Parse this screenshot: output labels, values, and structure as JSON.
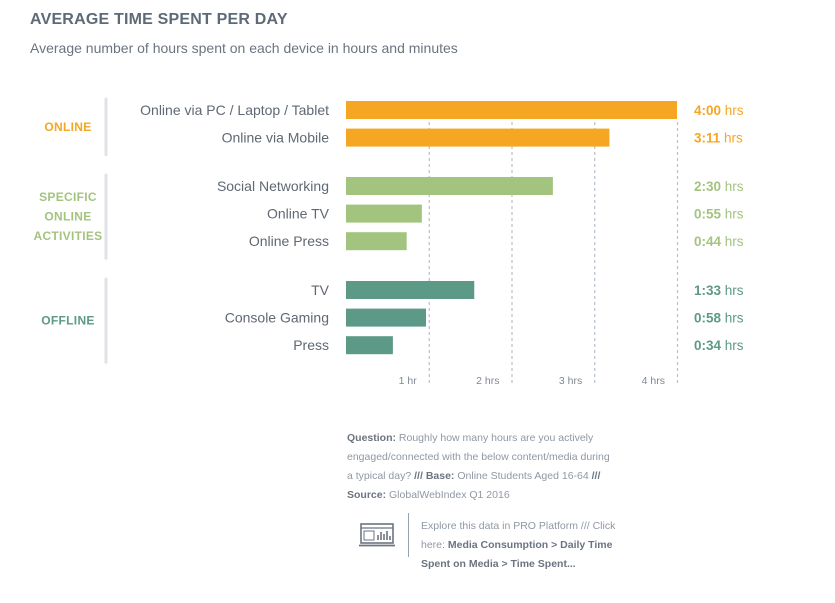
{
  "header": {
    "title": "AVERAGE TIME SPENT PER DAY",
    "subtitle": "Average number of hours spent on each device in hours and minutes"
  },
  "colors": {
    "online": "#f5a623",
    "specific": "#a3c47f",
    "offline": "#5c9a87",
    "bracket": "#dfe3e7",
    "grid": "#b9c0c8",
    "tick": "#7f8893",
    "label": "#5f6873"
  },
  "chart_data": {
    "type": "bar",
    "orientation": "horizontal",
    "title": "AVERAGE TIME SPENT PER DAY",
    "subtitle": "Average number of hours spent on each device in hours and minutes",
    "xlabel": "",
    "ylabel": "",
    "xlim": [
      0,
      4
    ],
    "x_ticks": [
      "1 hr",
      "2 hrs",
      "3 hrs",
      "4 hrs"
    ],
    "groups": [
      {
        "name": "ONLINE",
        "name_lines": [
          "ONLINE"
        ],
        "color_key": "online",
        "items": [
          {
            "category": "Online via PC / Laptop / Tablet",
            "value": 4.0,
            "label": "4:00",
            "unit": "hrs"
          },
          {
            "category": "Online via Mobile",
            "value": 3.1833,
            "label": "3:11",
            "unit": "hrs"
          }
        ]
      },
      {
        "name": "SPECIFIC ONLINE ACTIVITIES",
        "name_lines": [
          "SPECIFIC",
          "ONLINE",
          "ACTIVITIES"
        ],
        "color_key": "specific",
        "items": [
          {
            "category": "Social Networking",
            "value": 2.5,
            "label": "2:30",
            "unit": "hrs"
          },
          {
            "category": "Online TV",
            "value": 0.9167,
            "label": "0:55",
            "unit": "hrs"
          },
          {
            "category": "Online Press",
            "value": 0.7333,
            "label": "0:44",
            "unit": "hrs"
          }
        ]
      },
      {
        "name": "OFFLINE",
        "name_lines": [
          "OFFLINE"
        ],
        "color_key": "offline",
        "items": [
          {
            "category": "TV",
            "value": 1.55,
            "label": "1:33",
            "unit": "hrs"
          },
          {
            "category": "Console Gaming",
            "value": 0.9667,
            "label": "0:58",
            "unit": "hrs"
          },
          {
            "category": "Press",
            "value": 0.5667,
            "label": "0:34",
            "unit": "hrs"
          }
        ]
      }
    ]
  },
  "footnote": {
    "question_label": "Question:",
    "question_text_1": "Roughly how many hours are you actively",
    "question_text_2": "engaged/connected with the below content/media during",
    "question_text_3": "a typical day?",
    "sep_1": "///",
    "base_label": "Base:",
    "base_text": "Online Students Aged 16-64",
    "sep_2": "///",
    "source_label": "Source:",
    "source_text": "GlobalWebIndex Q1 2016"
  },
  "explore": {
    "line_1": "Explore this data in PRO Platform /// Click",
    "line_2_prefix": "here:",
    "line_2_link": "Media Consumption > Daily Time",
    "line_3_link": "Spent on Media > Time Spent..."
  }
}
